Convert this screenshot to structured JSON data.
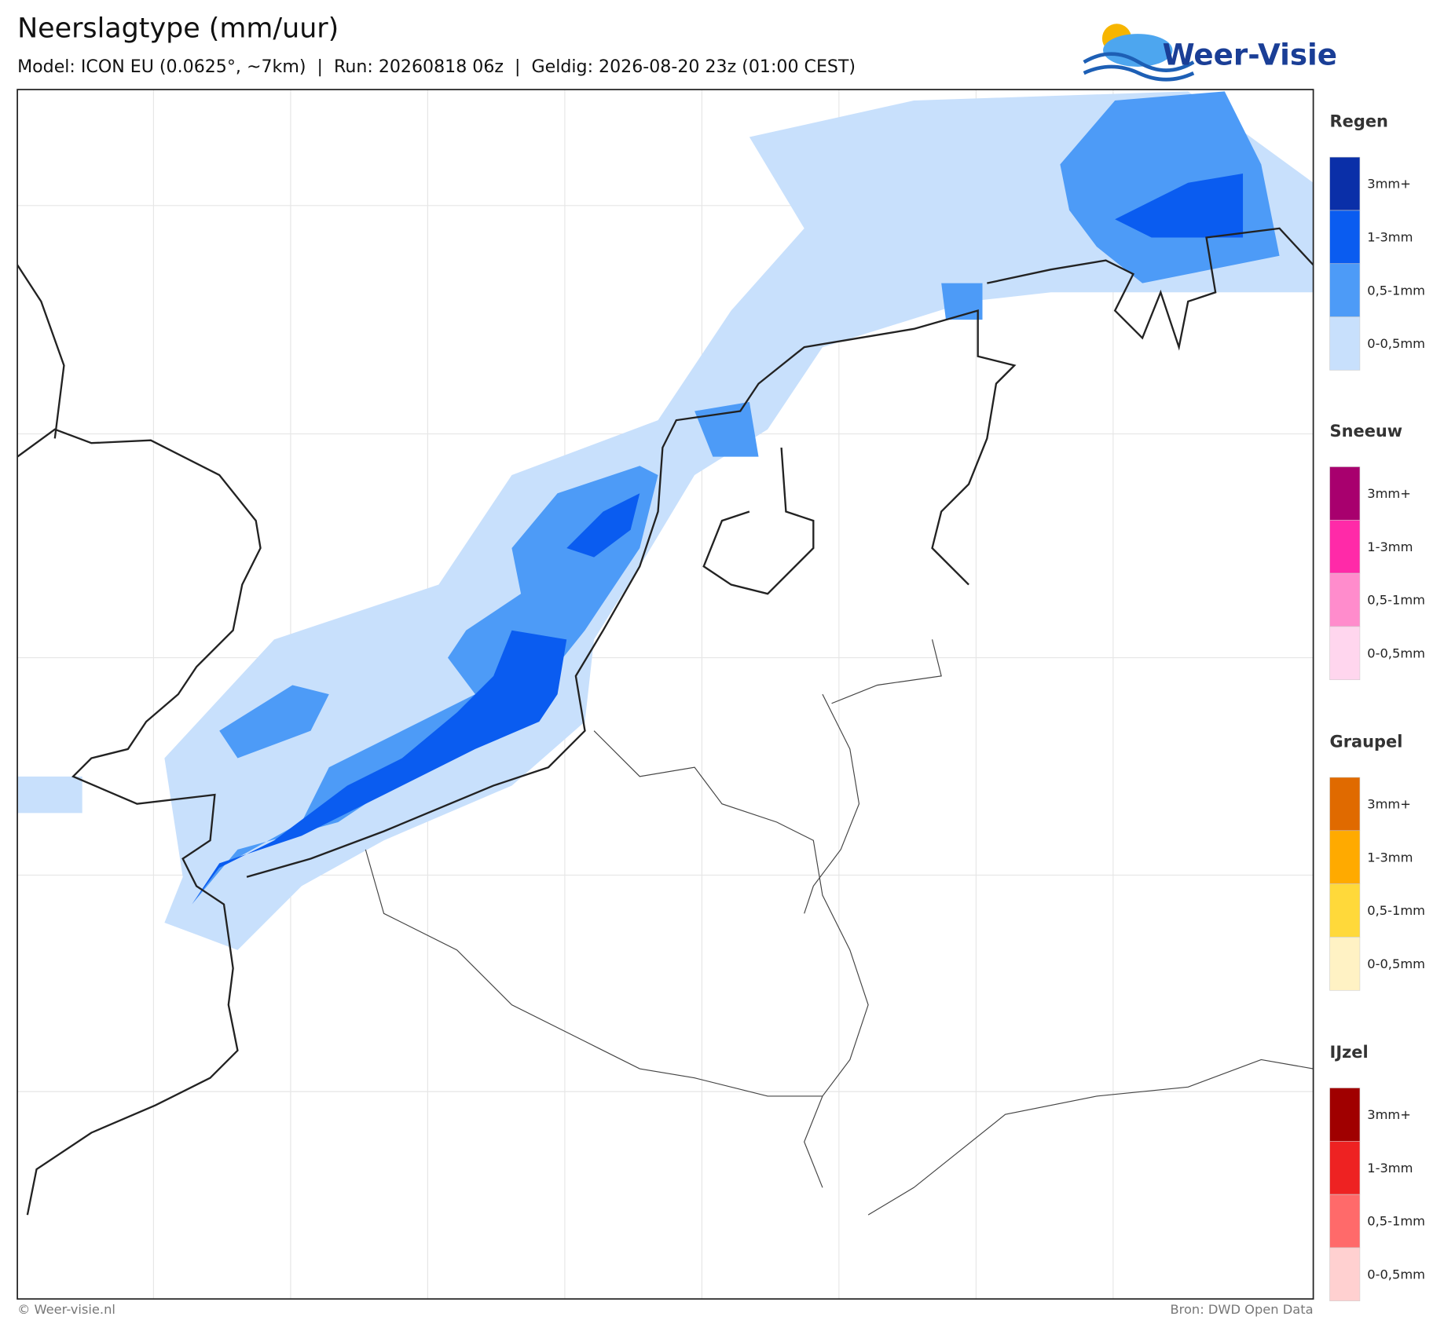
{
  "header": {
    "title": "Neerslagtype (mm/uur)",
    "subtitle": "Model: ICON EU (0.0625°, ~7km)  |  Run: 20260818 06z  |  Geldig: 2026-08-20 23z (01:00 CEST)"
  },
  "logo": {
    "text": "Weer-Visie"
  },
  "legend": [
    {
      "title": "Regen",
      "items": [
        {
          "label": "3mm+",
          "color": "#0a2fa8"
        },
        {
          "label": "1-3mm",
          "color": "#0a5cf0"
        },
        {
          "label": "0,5-1mm",
          "color": "#4d9bf7"
        },
        {
          "label": "0-0,5mm",
          "color": "#c8e0fc"
        }
      ]
    },
    {
      "title": "Sneeuw",
      "items": [
        {
          "label": "3mm+",
          "color": "#a8006e"
        },
        {
          "label": "1-3mm",
          "color": "#ff2aa8"
        },
        {
          "label": "0,5-1mm",
          "color": "#ff8ccc"
        },
        {
          "label": "0-0,5mm",
          "color": "#ffd6ee"
        }
      ]
    },
    {
      "title": "Graupel",
      "items": [
        {
          "label": "3mm+",
          "color": "#e06a00"
        },
        {
          "label": "1-3mm",
          "color": "#ffaa00"
        },
        {
          "label": "0,5-1mm",
          "color": "#ffd93a"
        },
        {
          "label": "0-0,5mm",
          "color": "#fff2c4"
        }
      ]
    },
    {
      "title": "IJzel",
      "items": [
        {
          "label": "3mm+",
          "color": "#a00000"
        },
        {
          "label": "1-3mm",
          "color": "#ee2222"
        },
        {
          "label": "0,5-1mm",
          "color": "#ff6a6a"
        },
        {
          "label": "0-0,5mm",
          "color": "#ffd0d0"
        }
      ]
    }
  ],
  "footer": {
    "credit": "© Weer-visie.nl",
    "source": "Bron: DWD Open Data"
  }
}
